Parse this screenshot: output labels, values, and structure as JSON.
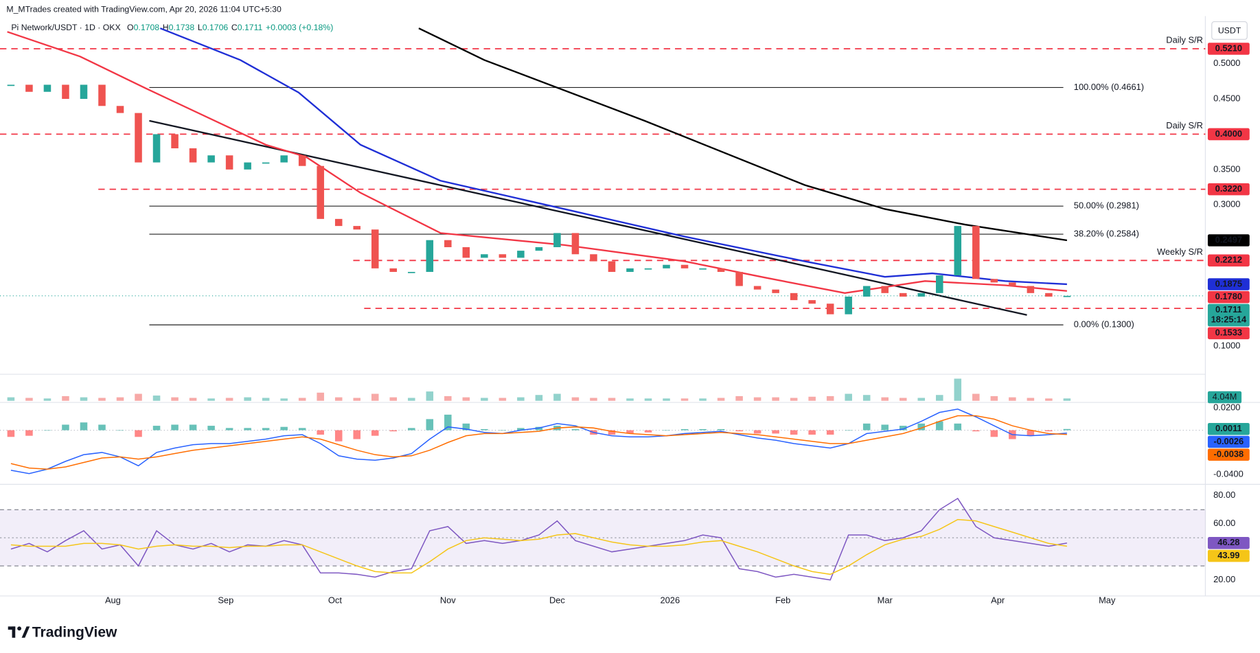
{
  "header": {
    "credit": "M_MTrades created with TradingView.com, Apr 20, 2026 11:04 UTC+5:30",
    "symbol": "Pi Network/USDT · 1D · OKX",
    "ohlc": [
      {
        "label": "O",
        "value": 0.1708
      },
      {
        "label": "H",
        "value": 0.1738
      },
      {
        "label": "L",
        "value": 0.1706
      },
      {
        "label": "C",
        "value": 0.1711
      }
    ],
    "change": "+0.0003 (+0.18%)",
    "currency": "USDT"
  },
  "footer": {
    "logo": "TradingView"
  },
  "chart_data": [
    {
      "type": "candlestick",
      "x": [
        3,
        8,
        13,
        18,
        23,
        28,
        33,
        38,
        43,
        48,
        53,
        58,
        63,
        68,
        73,
        78,
        83,
        88,
        93,
        98,
        103,
        108,
        113,
        118,
        123,
        128,
        133,
        138,
        143,
        148,
        153,
        158,
        163,
        168,
        173,
        178,
        183,
        188,
        193,
        198,
        203,
        208,
        213,
        218,
        223,
        228,
        233,
        238,
        243,
        248,
        253,
        258,
        263,
        268,
        273,
        278,
        283,
        288,
        293
      ],
      "close": [
        0.47,
        0.46,
        0.47,
        0.45,
        0.47,
        0.44,
        0.43,
        0.36,
        0.4,
        0.38,
        0.36,
        0.37,
        0.35,
        0.36,
        0.36,
        0.37,
        0.355,
        0.28,
        0.27,
        0.265,
        0.21,
        0.205,
        0.205,
        0.25,
        0.24,
        0.225,
        0.23,
        0.225,
        0.235,
        0.24,
        0.26,
        0.23,
        0.22,
        0.205,
        0.21,
        0.21,
        0.215,
        0.21,
        0.21,
        0.205,
        0.185,
        0.18,
        0.175,
        0.165,
        0.16,
        0.145,
        0.17,
        0.185,
        0.175,
        0.17,
        0.175,
        0.2,
        0.27,
        0.195,
        0.19,
        0.185,
        0.175,
        0.17,
        0.1711
      ],
      "up_color": "#26a69a",
      "down_color": "#ef5350",
      "last_label": "0.1711",
      "countdown": "18:25:14",
      "xlim": [
        0,
        331
      ],
      "xticks": [
        {
          "value": 31,
          "label": "Aug"
        },
        {
          "value": 62,
          "label": "Sep"
        },
        {
          "value": 92,
          "label": "Oct"
        },
        {
          "value": 123,
          "label": "Nov"
        },
        {
          "value": 153,
          "label": "Dec"
        },
        {
          "value": 184,
          "label": "2026"
        },
        {
          "value": 215,
          "label": "Feb"
        },
        {
          "value": 243,
          "label": "Mar"
        },
        {
          "value": 274,
          "label": "Apr"
        },
        {
          "value": 304,
          "label": "May"
        }
      ],
      "ylim": [
        0.06,
        0.565
      ],
      "yticks": [
        {
          "value": 0.1,
          "label": "0.1000"
        },
        {
          "value": 0.3,
          "label": "0.3000"
        },
        {
          "value": 0.35,
          "label": "0.3500"
        },
        {
          "value": 0.45,
          "label": "0.4500"
        },
        {
          "value": 0.5,
          "label": "0.5000"
        }
      ],
      "moving_averages": [
        {
          "color": "#f23645",
          "x": [
            2,
            22,
            40,
            73,
            84,
            99,
            121,
            155,
            188,
            210,
            232,
            254,
            276,
            293
          ],
          "values": [
            0.545,
            0.51,
            0.465,
            0.385,
            0.368,
            0.317,
            0.26,
            0.243,
            0.22,
            0.197,
            0.175,
            0.192,
            0.186,
            0.178
          ],
          "last_label": "0.1780"
        },
        {
          "color": "#1f2fd6",
          "x": [
            44,
            66,
            82,
            99,
            121,
            155,
            188,
            221,
            243,
            256,
            276,
            293
          ],
          "values": [
            0.55,
            0.505,
            0.459,
            0.385,
            0.334,
            0.294,
            0.255,
            0.22,
            0.198,
            0.203,
            0.192,
            0.1875
          ],
          "last_label": "0.1875"
        },
        {
          "color": "#000000",
          "x": [
            115,
            133,
            177,
            221,
            243,
            265,
            293
          ],
          "values": [
            0.55,
            0.505,
            0.419,
            0.328,
            0.294,
            0.272,
            0.2497
          ],
          "last_label": "0.2497"
        }
      ],
      "levels": [
        {
          "value": 0.521,
          "label": "0.5210",
          "text": "Daily S/R",
          "from": 0
        },
        {
          "value": 0.4,
          "label": "0.4000",
          "text": "Daily S/R",
          "from": 0
        },
        {
          "value": 0.322,
          "label": "0.3220",
          "from": 27
        },
        {
          "value": 0.2212,
          "label": "0.2212",
          "text": "Weekly S/R",
          "from": 97
        },
        {
          "value": 0.1533,
          "label": "0.1533",
          "from": 100
        }
      ],
      "level_color": "#f23645",
      "fibonacci": [
        {
          "value": 0.4661,
          "text": "100.00% (0.4661)"
        },
        {
          "value": 0.2981,
          "text": "50.00% (0.2981)"
        },
        {
          "value": 0.2584,
          "text": "38.20% (0.2584)"
        },
        {
          "value": 0.13,
          "text": "0.00% (0.1300)"
        }
      ],
      "fib_from": 41,
      "fib_to": 292,
      "trendline": {
        "x": [
          41,
          282
        ],
        "y": [
          0.419,
          0.144
        ]
      }
    },
    {
      "type": "bar",
      "values": [
        6,
        5,
        4,
        8,
        6,
        5,
        6,
        12,
        9,
        6,
        5,
        4,
        5,
        6,
        5,
        4,
        5,
        14,
        6,
        5,
        12,
        6,
        5,
        16,
        8,
        6,
        5,
        5,
        6,
        10,
        12,
        6,
        5,
        5,
        4,
        4,
        4,
        4,
        4,
        5,
        8,
        6,
        6,
        5,
        7,
        8,
        12,
        10,
        6,
        5,
        5,
        10,
        38,
        12,
        8,
        6,
        5,
        4,
        4.04
      ],
      "last_label": "4.04M",
      "ylim": [
        0,
        40
      ]
    },
    {
      "type": "macd",
      "histogram": [
        -0.006,
        -0.005,
        0,
        0.005,
        0.007,
        0.005,
        0,
        -0.006,
        0.004,
        0.005,
        0.005,
        0.004,
        0.002,
        0.002,
        0.002,
        0.003,
        0.002,
        -0.004,
        -0.01,
        -0.008,
        -0.005,
        -0.001,
        0.002,
        0.01,
        0.014,
        0.006,
        0.001,
        0,
        0.002,
        0.003,
        0.004,
        0.001,
        -0.004,
        -0.004,
        -0.003,
        -0.002,
        0,
        0.001,
        0.001,
        0.001,
        -0.001,
        -0.003,
        -0.003,
        -0.004,
        -0.004,
        -0.004,
        0,
        0.006,
        0.005,
        0.004,
        0.006,
        0.008,
        0.006,
        -0.001,
        -0.006,
        -0.008,
        -0.005,
        -0.001,
        0.0011
      ],
      "histogram_last_label": "0.0011",
      "series": [
        {
          "color": "#2962ff",
          "values": [
            -0.036,
            -0.039,
            -0.035,
            -0.028,
            -0.022,
            -0.02,
            -0.024,
            -0.032,
            -0.02,
            -0.016,
            -0.013,
            -0.012,
            -0.012,
            -0.01,
            -0.008,
            -0.005,
            -0.004,
            -0.012,
            -0.023,
            -0.026,
            -0.027,
            -0.025,
            -0.021,
            -0.008,
            0.003,
            0.001,
            -0.002,
            -0.003,
            0,
            0.002,
            0.006,
            0.004,
            -0.002,
            -0.005,
            -0.006,
            -0.006,
            -0.005,
            -0.003,
            -0.002,
            -0.001,
            -0.004,
            -0.007,
            -0.009,
            -0.012,
            -0.014,
            -0.016,
            -0.012,
            -0.003,
            -0.001,
            0.001,
            0.008,
            0.016,
            0.019,
            0.012,
            0.004,
            -0.004,
            -0.005,
            -0.004,
            -0.0026
          ],
          "last_label": "-0.0026"
        },
        {
          "color": "#ff6d00",
          "values": [
            -0.03,
            -0.034,
            -0.035,
            -0.033,
            -0.029,
            -0.025,
            -0.024,
            -0.026,
            -0.024,
            -0.021,
            -0.018,
            -0.016,
            -0.014,
            -0.012,
            -0.01,
            -0.008,
            -0.006,
            -0.008,
            -0.013,
            -0.018,
            -0.022,
            -0.024,
            -0.023,
            -0.018,
            -0.011,
            -0.005,
            -0.003,
            -0.003,
            -0.002,
            -0.001,
            0.002,
            0.003,
            0.002,
            -0.001,
            -0.003,
            -0.004,
            -0.005,
            -0.004,
            -0.003,
            -0.002,
            -0.003,
            -0.004,
            -0.006,
            -0.008,
            -0.01,
            -0.012,
            -0.012,
            -0.009,
            -0.006,
            -0.003,
            0.002,
            0.008,
            0.013,
            0.013,
            0.01,
            0.004,
            0,
            -0.003,
            -0.0038
          ],
          "last_label": "-0.0038"
        }
      ],
      "ylim": [
        -0.0465,
        0.0243
      ],
      "yticks": [
        {
          "value": 0.02,
          "label": "0.0200"
        },
        {
          "value": -0.04,
          "label": "-0.0400"
        }
      ],
      "baseline": 0
    },
    {
      "type": "line",
      "series": [
        {
          "color": "#7e57c2",
          "values": [
            42,
            46,
            40,
            48,
            55,
            42,
            45,
            30,
            55,
            45,
            42,
            46,
            40,
            45,
            44,
            48,
            45,
            25,
            25,
            24,
            22,
            26,
            28,
            55,
            58,
            46,
            48,
            46,
            48,
            52,
            62,
            48,
            44,
            40,
            42,
            44,
            46,
            48,
            52,
            50,
            28,
            26,
            22,
            24,
            22,
            20,
            52,
            52,
            48,
            50,
            55,
            70,
            78,
            58,
            50,
            48,
            46,
            44,
            46.28
          ],
          "last_label": "46.28"
        },
        {
          "color": "#f5c518",
          "values": [
            45,
            44,
            44,
            44,
            46,
            46,
            45,
            42,
            44,
            45,
            44,
            44,
            43,
            44,
            44,
            45,
            45,
            40,
            35,
            30,
            26,
            25,
            25,
            33,
            42,
            48,
            50,
            49,
            48,
            49,
            52,
            53,
            50,
            47,
            45,
            44,
            44,
            45,
            47,
            48,
            44,
            40,
            35,
            30,
            26,
            24,
            30,
            38,
            45,
            49,
            51,
            56,
            63,
            62,
            58,
            54,
            50,
            46,
            43.99
          ],
          "last_label": "43.99"
        }
      ],
      "ylim": [
        8.6,
        86.9
      ],
      "yticks": [
        {
          "value": 80,
          "label": "80.00"
        },
        {
          "value": 60,
          "label": "60.00"
        },
        {
          "value": 20,
          "label": "20.00"
        }
      ],
      "bands": [
        30,
        70
      ],
      "midline": 50
    }
  ]
}
